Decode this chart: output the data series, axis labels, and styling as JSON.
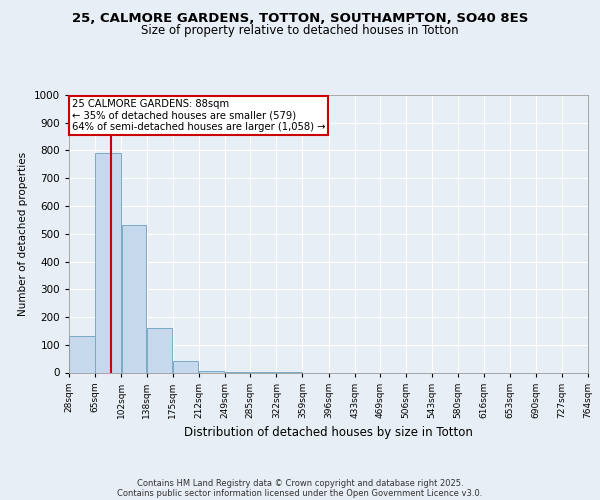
{
  "title_line1": "25, CALMORE GARDENS, TOTTON, SOUTHAMPTON, SO40 8ES",
  "title_line2": "Size of property relative to detached houses in Totton",
  "xlabel": "Distribution of detached houses by size in Totton",
  "ylabel": "Number of detached properties",
  "footer_line1": "Contains HM Land Registry data © Crown copyright and database right 2025.",
  "footer_line2": "Contains public sector information licensed under the Open Government Licence v3.0.",
  "bar_edges": [
    28,
    65,
    102,
    138,
    175,
    212,
    249,
    285,
    322,
    359,
    396,
    433,
    469,
    506,
    543,
    580,
    616,
    653,
    690,
    727,
    764
  ],
  "bar_heights": [
    130,
    790,
    530,
    160,
    40,
    5,
    2,
    1,
    1,
    0,
    0,
    0,
    0,
    0,
    0,
    0,
    0,
    0,
    0,
    0
  ],
  "bar_color": "#c6d9ec",
  "bar_edge_color": "#7aaac8",
  "property_size": 88,
  "property_label": "25 CALMORE GARDENS: 88sqm",
  "annotation_line1": "← 35% of detached houses are smaller (579)",
  "annotation_line2": "64% of semi-detached houses are larger (1,058) →",
  "vline_color": "#cc0000",
  "annotation_box_edge": "#cc0000",
  "ylim": [
    0,
    1000
  ],
  "yticks": [
    0,
    100,
    200,
    300,
    400,
    500,
    600,
    700,
    800,
    900,
    1000
  ],
  "bg_color": "#e8eef5",
  "plot_bg_color": "#e8eef5",
  "grid_color": "#ffffff"
}
